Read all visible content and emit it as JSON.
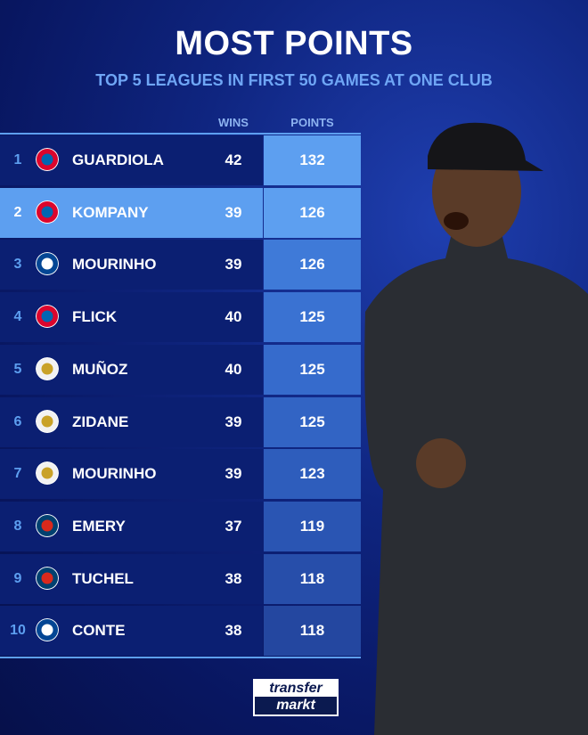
{
  "header": {
    "title": "MOST POINTS",
    "subtitle": "TOP 5 LEAGUES IN FIRST 50 GAMES AT ONE CLUB"
  },
  "chart_data": {
    "type": "table",
    "columns": [
      "WINS",
      "POINTS"
    ],
    "rows": [
      {
        "rank": "1",
        "club_icon": "bayern-crest",
        "name": "GUARDIOLA",
        "wins": "42",
        "points": "132"
      },
      {
        "rank": "2",
        "club_icon": "bayern-crest",
        "name": "KOMPANY",
        "wins": "39",
        "points": "126",
        "highlighted": true
      },
      {
        "rank": "3",
        "club_icon": "chelsea-crest",
        "name": "MOURINHO",
        "wins": "39",
        "points": "126"
      },
      {
        "rank": "4",
        "club_icon": "bayern-crest",
        "name": "FLICK",
        "wins": "40",
        "points": "125"
      },
      {
        "rank": "5",
        "club_icon": "real-madrid-crest",
        "name": "MUÑOZ",
        "wins": "40",
        "points": "125"
      },
      {
        "rank": "6",
        "club_icon": "real-madrid-crest",
        "name": "ZIDANE",
        "wins": "39",
        "points": "125"
      },
      {
        "rank": "7",
        "club_icon": "real-madrid-crest",
        "name": "MOURINHO",
        "wins": "39",
        "points": "123"
      },
      {
        "rank": "8",
        "club_icon": "psg-crest",
        "name": "EMERY",
        "wins": "37",
        "points": "119"
      },
      {
        "rank": "9",
        "club_icon": "psg-crest",
        "name": "TUCHEL",
        "wins": "38",
        "points": "118"
      },
      {
        "rank": "10",
        "club_icon": "chelsea-crest",
        "name": "CONTE",
        "wins": "38",
        "points": "118"
      }
    ]
  },
  "colors": {
    "highlight": "#5d9ff0",
    "name_cell": "#0b1f72",
    "bayern": "#dc052d",
    "chelsea": "#034694",
    "real_madrid": "#f2f2f2",
    "psg": "#004170"
  },
  "brand": {
    "line1": "transfer",
    "line2": "markt"
  }
}
